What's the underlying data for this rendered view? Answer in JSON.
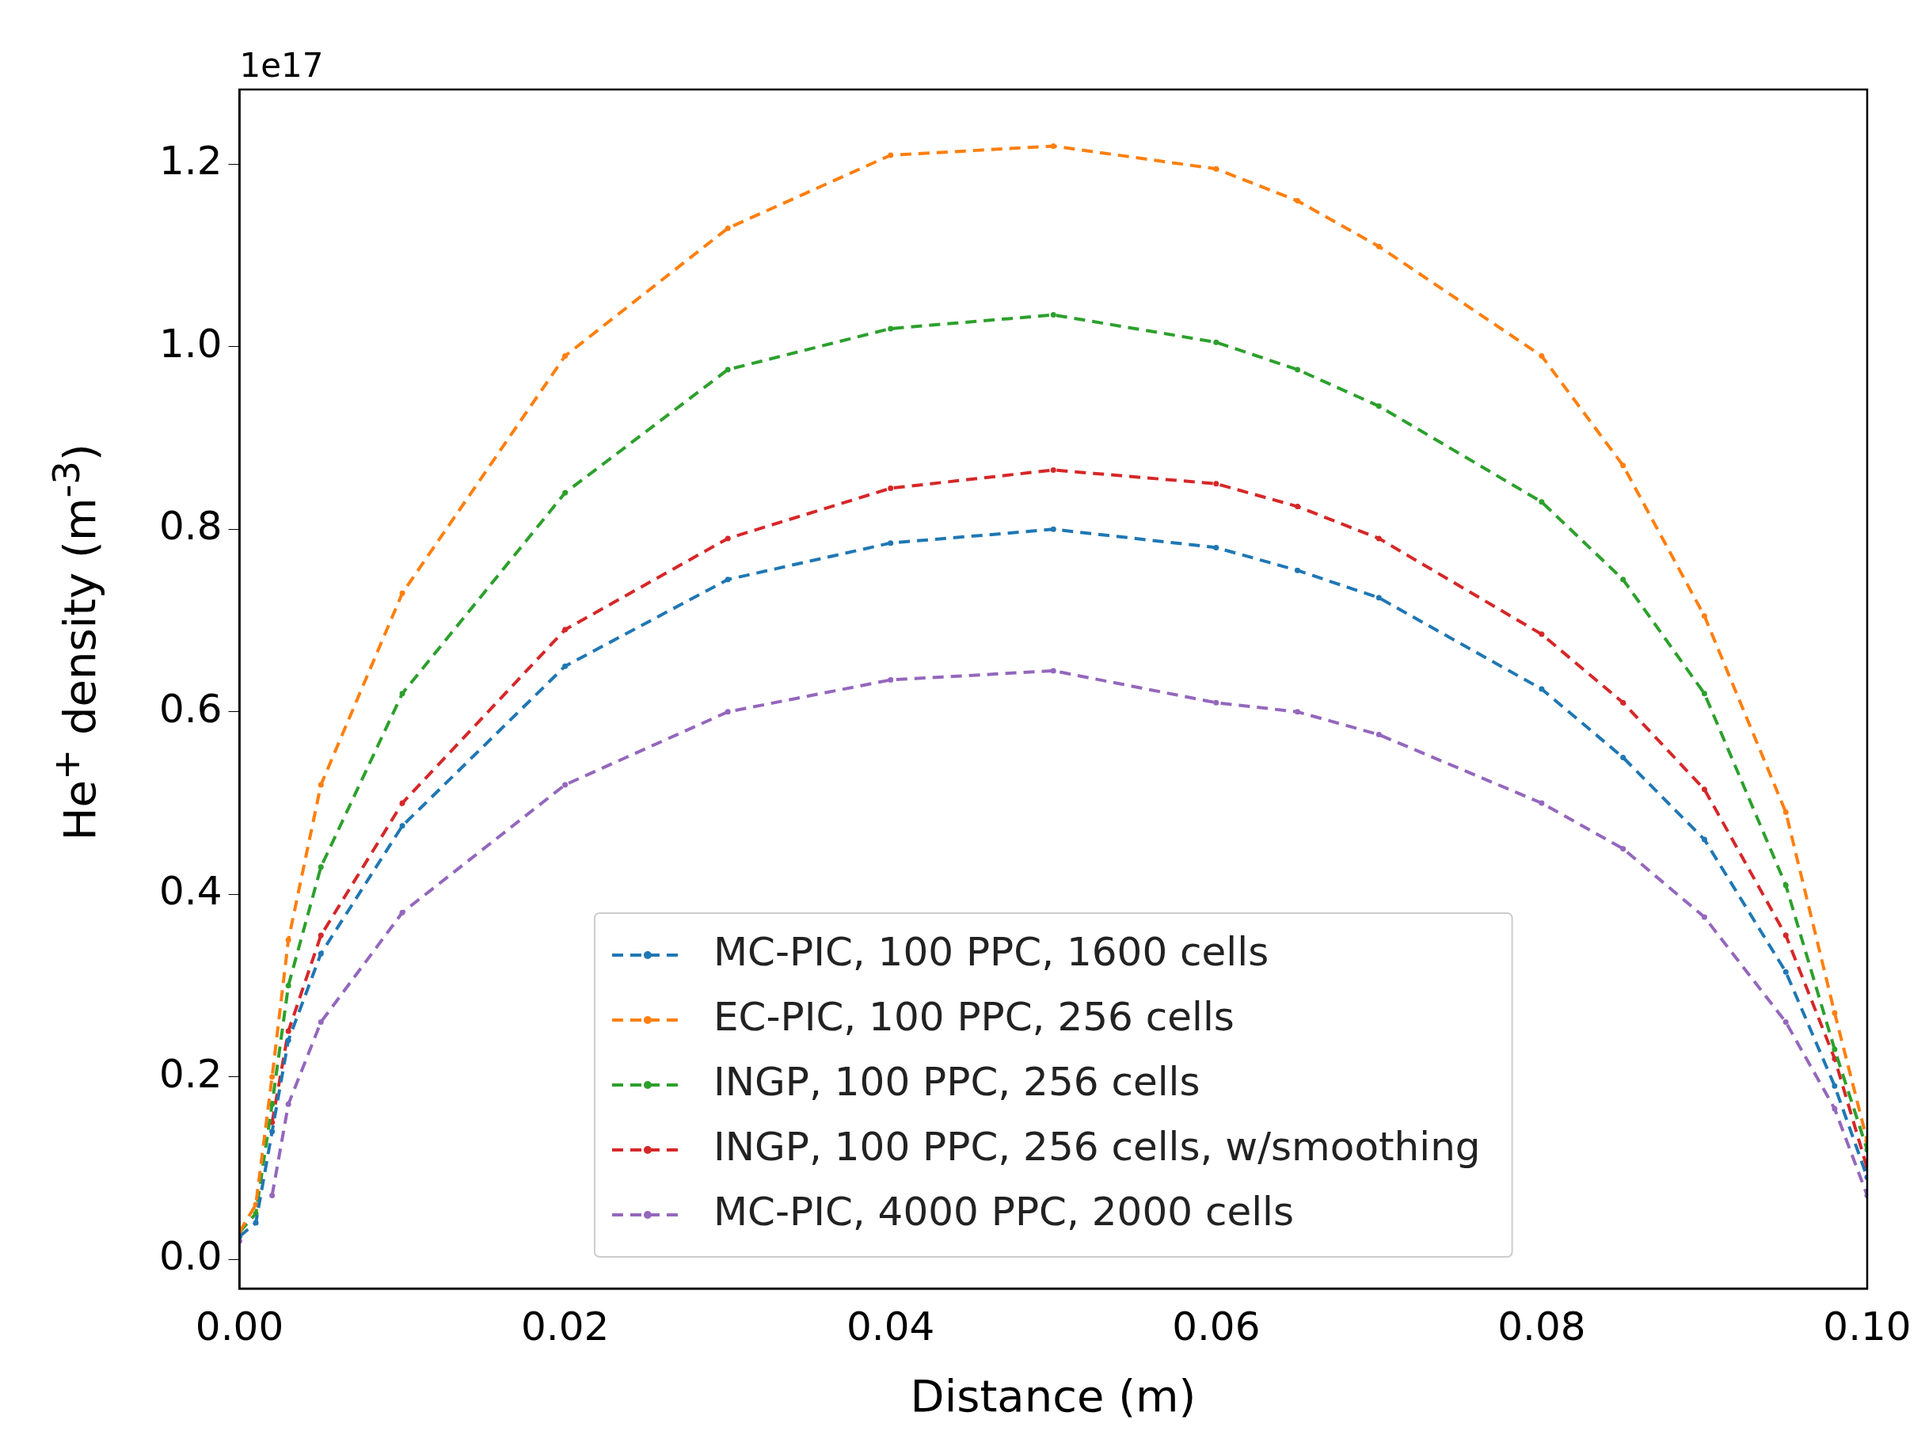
{
  "chart_data": {
    "type": "line",
    "xlabel": "Distance (m)",
    "ylabel": "He$^{+}$ density (m$^{-3}$)",
    "annotations": [
      "1e17"
    ],
    "x": [
      0,
      0.001,
      0.002,
      0.003,
      0.005,
      0.01,
      0.02,
      0.03,
      0.04,
      0.05,
      0.06,
      0.065,
      0.07,
      0.08,
      0.085,
      0.09,
      0.095,
      0.098,
      0.1
    ],
    "series": [
      {
        "name": "MC-PIC, 100 PPC, 1600 cells",
        "color": "#1f77b4",
        "values": [
          0.025,
          0.04,
          0.14,
          0.24,
          0.335,
          0.475,
          0.65,
          0.745,
          0.785,
          0.8,
          0.78,
          0.755,
          0.725,
          0.625,
          0.55,
          0.46,
          0.315,
          0.19,
          0.09
        ]
      },
      {
        "name": "EC-PIC, 100 PPC, 256 cells",
        "color": "#ff7f0e",
        "values": [
          0.03,
          0.06,
          0.2,
          0.35,
          0.52,
          0.73,
          0.99,
          1.13,
          1.21,
          1.22,
          1.195,
          1.16,
          1.11,
          0.99,
          0.87,
          0.705,
          0.49,
          0.27,
          0.13
        ]
      },
      {
        "name": "INGP, 100 PPC, 256 cells",
        "color": "#2ca02c",
        "values": [
          0.03,
          0.05,
          0.17,
          0.3,
          0.43,
          0.62,
          0.84,
          0.975,
          1.02,
          1.035,
          1.005,
          0.975,
          0.935,
          0.83,
          0.745,
          0.62,
          0.41,
          0.23,
          0.12
        ]
      },
      {
        "name": "INGP, 100 PPC, 256 cells, w/smoothing",
        "color": "#d62728",
        "values": [
          null,
          null,
          0.15,
          0.25,
          0.355,
          0.5,
          0.69,
          0.79,
          0.845,
          0.865,
          0.85,
          0.825,
          0.79,
          0.685,
          0.61,
          0.515,
          0.355,
          0.22,
          0.1
        ]
      },
      {
        "name": "MC-PIC, 4000 PPC, 2000 cells",
        "color": "#9467bd",
        "values": [
          0.02,
          null,
          0.07,
          0.17,
          0.26,
          0.38,
          0.52,
          0.6,
          0.635,
          0.645,
          0.61,
          0.6,
          0.575,
          0.5,
          0.45,
          0.375,
          0.26,
          0.165,
          0.07
        ]
      }
    ],
    "xlim": [
      0,
      0.1
    ],
    "ylim": [
      -0.032,
      1.282
    ],
    "xticks": [
      {
        "value": 0,
        "label": "0.00"
      },
      {
        "value": 0.02,
        "label": "0.02"
      },
      {
        "value": 0.04,
        "label": "0.04"
      },
      {
        "value": 0.06,
        "label": "0.06"
      },
      {
        "value": 0.08,
        "label": "0.08"
      },
      {
        "value": 0.1,
        "label": "0.10"
      }
    ],
    "yticks": [
      {
        "value": 0,
        "label": "0.0"
      },
      {
        "value": 0.2,
        "label": "0.2"
      },
      {
        "value": 0.4,
        "label": "0.4"
      },
      {
        "value": 0.6,
        "label": "0.6"
      },
      {
        "value": 0.8,
        "label": "0.8"
      },
      {
        "value": 1,
        "label": "1.0"
      },
      {
        "value": 1.2,
        "label": "1.2"
      }
    ],
    "grid": false,
    "legend": "bottom",
    "marker": "circle",
    "line_style": "dashed"
  }
}
